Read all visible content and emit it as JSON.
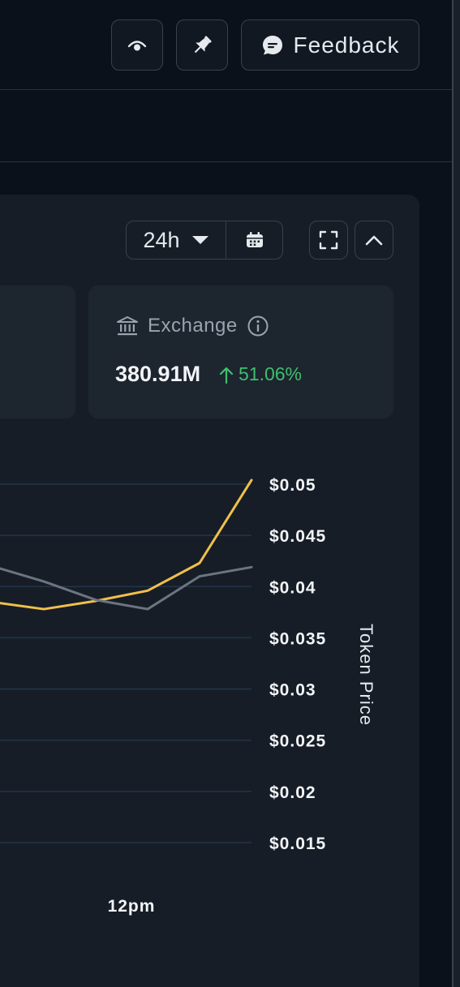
{
  "header": {
    "feedback_label": "Feedback"
  },
  "controls": {
    "range_label": "24h"
  },
  "card": {
    "title": "Exchange",
    "value": "380.91M",
    "change": "51.06%"
  },
  "colors": {
    "series_1": "#f0c04a",
    "series_2": "#6b7480",
    "grid": "#23344a",
    "positive": "#3fbf6e"
  },
  "chart_data": {
    "type": "line",
    "ylabel": "Token Price",
    "ylim": [
      0.015,
      0.05
    ],
    "y_ticks": [
      {
        "value": 0.05,
        "label": "$0.05"
      },
      {
        "value": 0.045,
        "label": "$0.045"
      },
      {
        "value": 0.04,
        "label": "$0.04"
      },
      {
        "value": 0.035,
        "label": "$0.035"
      },
      {
        "value": 0.03,
        "label": "$0.03"
      },
      {
        "value": 0.025,
        "label": "$0.025"
      },
      {
        "value": 0.02,
        "label": "$0.02"
      },
      {
        "value": 0.015,
        "label": "$0.015"
      }
    ],
    "x_ticks": [
      {
        "label": "12pm"
      }
    ],
    "grid": true,
    "series": [
      {
        "color": "#f0c04a",
        "values": [
          0.0385,
          0.0378,
          0.0386,
          0.0396,
          0.0423,
          0.0504
        ]
      },
      {
        "color": "#6b7480",
        "values": [
          0.042,
          0.0405,
          0.0387,
          0.0378,
          0.041,
          0.0419
        ]
      }
    ]
  }
}
